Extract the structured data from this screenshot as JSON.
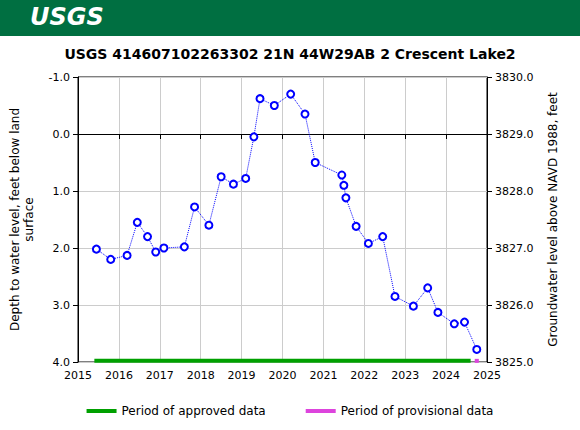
{
  "chart_data": {
    "type": "line",
    "banner": "USGS",
    "title": "USGS 414607102263302 21N 44W29AB 2 Crescent Lake2",
    "ylabel": "Depth to water level, feet below land\nsurface",
    "y2label": "Groundwater level above NAVD 1988, feet",
    "color": "#0000ff",
    "marker": "circle",
    "line_style": "dotted",
    "grid": true,
    "legend": "bottom",
    "x": [
      2015.45,
      2015.8,
      2016.2,
      2016.45,
      2016.7,
      2016.9,
      2017.1,
      2017.6,
      2017.85,
      2018.2,
      2018.5,
      2018.8,
      2019.1,
      2019.3,
      2019.45,
      2019.8,
      2020.2,
      2020.55,
      2020.8,
      2021.45,
      2021.5,
      2021.55,
      2021.8,
      2022.1,
      2022.45,
      2022.75,
      2023.2,
      2023.55,
      2023.8,
      2024.2,
      2024.45,
      2024.75
    ],
    "values": [
      2.02,
      2.2,
      2.13,
      1.55,
      1.8,
      2.07,
      2.0,
      1.98,
      1.28,
      1.6,
      0.75,
      0.88,
      0.78,
      0.05,
      -0.62,
      -0.5,
      -0.7,
      -0.35,
      0.5,
      0.72,
      0.9,
      1.12,
      1.62,
      1.92,
      1.8,
      2.85,
      3.02,
      2.7,
      3.13,
      3.33,
      3.3,
      3.78
    ],
    "xlim": [
      2015,
      2025
    ],
    "xticks": [
      2015,
      2016,
      2017,
      2018,
      2019,
      2020,
      2021,
      2022,
      2023,
      2024,
      2025
    ],
    "ylim": [
      -1,
      4
    ],
    "yticks": [
      {
        "value": -1,
        "label": "-1.0"
      },
      {
        "value": 0,
        "label": "0.0"
      },
      {
        "value": 1,
        "label": "1.0"
      },
      {
        "value": 2,
        "label": "2.0"
      },
      {
        "value": 3,
        "label": "3.0"
      },
      {
        "value": 4,
        "label": "4.0"
      }
    ],
    "y2lim": [
      3825,
      3830
    ],
    "y2ticks": [
      {
        "value": 3825,
        "label": "3825.0"
      },
      {
        "value": 3826,
        "label": "3826.0"
      },
      {
        "value": 3827,
        "label": "3827.0"
      },
      {
        "value": 3828,
        "label": "3828.0"
      },
      {
        "value": 3829,
        "label": "3829.0"
      },
      {
        "value": 3830,
        "label": "3830.0"
      }
    ],
    "periods": [
      {
        "name": "Period of approved data",
        "color": "#00a000",
        "start": 2015.4,
        "end": 2024.6,
        "y": 3.98
      },
      {
        "name": "Period of provisional data",
        "color": "#dd44dd",
        "start": 2024.7,
        "end": 2024.8,
        "y": 3.98
      }
    ]
  }
}
